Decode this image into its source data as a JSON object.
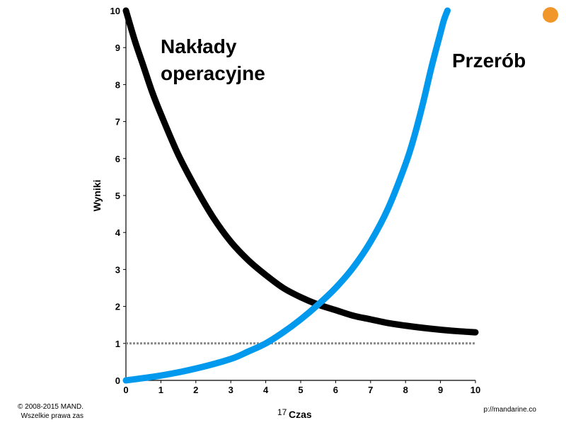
{
  "page": {
    "number": "17",
    "copyright_line1": "© 2008-2015 MAND.",
    "copyright_line2": "Wszelkie prawa zas",
    "url": "p://mandarine.co"
  },
  "accent_dot": {
    "color": "#f0962a"
  },
  "chart_data": {
    "type": "line",
    "title": "",
    "xlabel": "Czas",
    "ylabel": "Wyniki",
    "xlim": [
      0,
      10
    ],
    "ylim": [
      0,
      10
    ],
    "x_ticks": [
      "0",
      "1",
      "2",
      "3",
      "4",
      "5",
      "6",
      "7",
      "8",
      "9",
      "10"
    ],
    "y_ticks": [
      "0",
      "1",
      "2",
      "3",
      "4",
      "5",
      "6",
      "7",
      "8",
      "9",
      "10"
    ],
    "grid": false,
    "series": [
      {
        "name": "Nakłady operacyjne",
        "label_lines": [
          "Nakłady",
          "operacyjne"
        ],
        "color": "#000000",
        "x": [
          0,
          0.25,
          0.5,
          0.75,
          1,
          1.5,
          2,
          2.5,
          3,
          3.5,
          4,
          4.5,
          5,
          5.5,
          6,
          6.5,
          7,
          7.5,
          8,
          8.5,
          9,
          9.5,
          10
        ],
        "y": [
          10,
          9.2,
          8.5,
          7.8,
          7.2,
          6.1,
          5.2,
          4.4,
          3.75,
          3.25,
          2.85,
          2.5,
          2.25,
          2.05,
          1.9,
          1.75,
          1.65,
          1.55,
          1.48,
          1.42,
          1.37,
          1.33,
          1.3
        ]
      },
      {
        "name": "Przerób",
        "label_lines": [
          "Przerób"
        ],
        "color": "#0099ee",
        "x": [
          0,
          1,
          2,
          3,
          3.5,
          4,
          4.5,
          5,
          5.5,
          6,
          6.5,
          7,
          7.5,
          8,
          8.25,
          8.5,
          8.75,
          9,
          9.1,
          9.2
        ],
        "y": [
          0,
          0.13,
          0.32,
          0.58,
          0.78,
          1.0,
          1.3,
          1.65,
          2.05,
          2.5,
          3.05,
          3.75,
          4.65,
          5.85,
          6.6,
          7.5,
          8.5,
          9.4,
          9.75,
          10
        ]
      }
    ],
    "reference_line": {
      "y": 1,
      "style": "dashed",
      "color": "#888888"
    }
  }
}
